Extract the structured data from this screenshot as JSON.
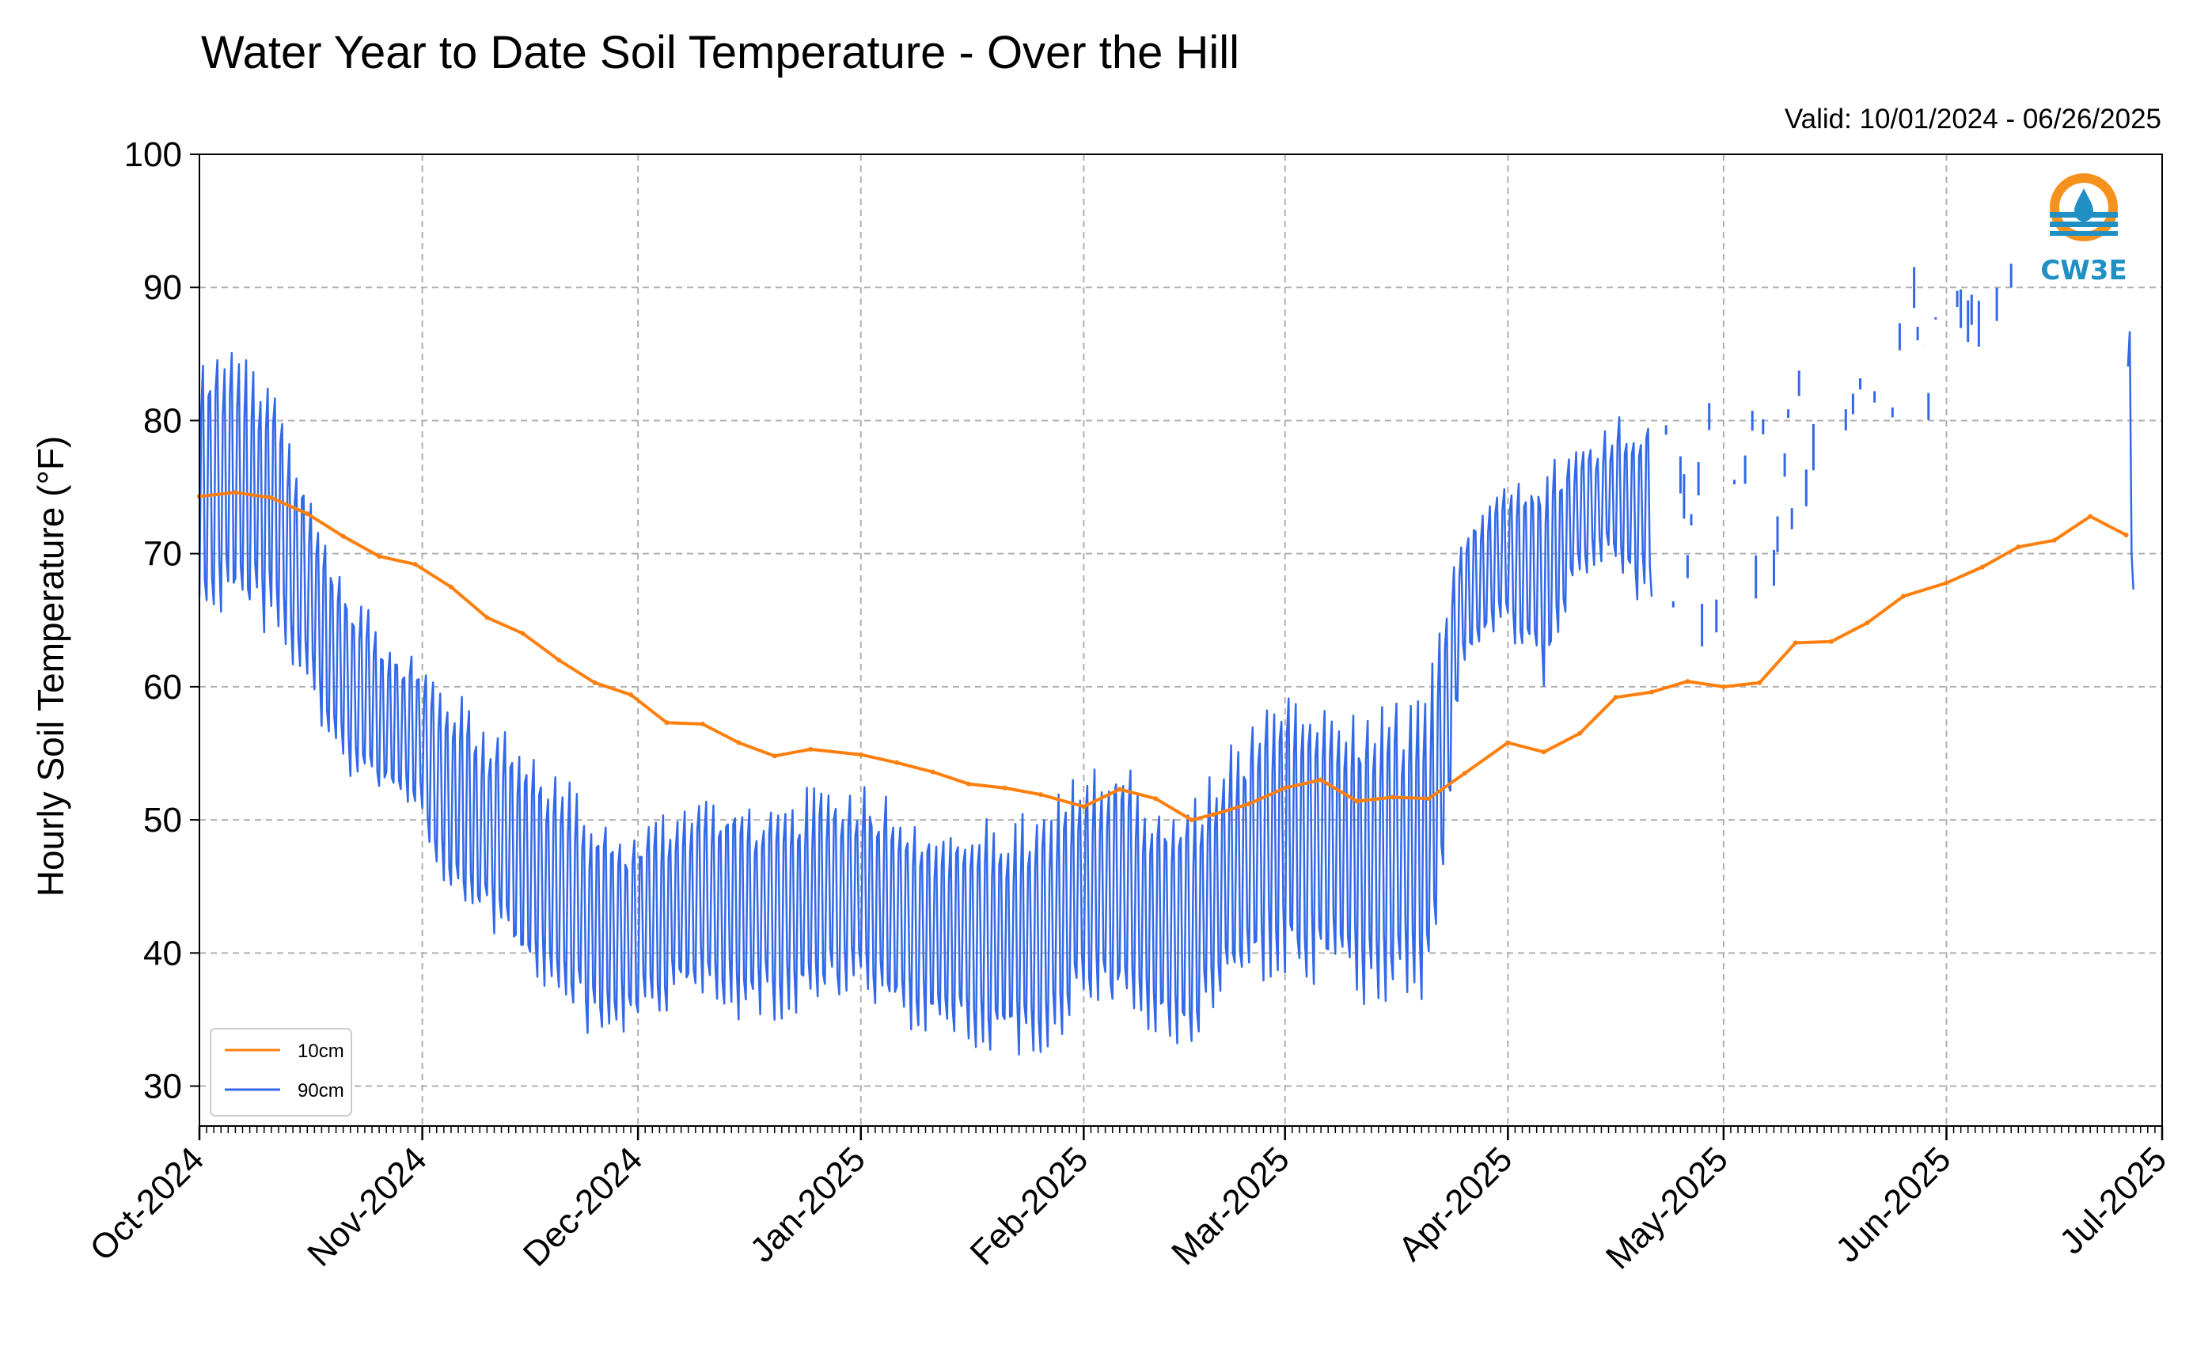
{
  "chart_data": {
    "type": "line",
    "title": "Water Year to Date Soil Temperature - Over the Hill",
    "subtitle": "Valid: 10/01/2024 - 06/26/2025",
    "ylabel": "Hourly Soil Temperature (°F)",
    "xlabel": "",
    "ylim": [
      27,
      100
    ],
    "xlim": [
      "2024-10-01",
      "2025-07-01"
    ],
    "yticks": [
      "30",
      "40",
      "50",
      "60",
      "70",
      "80",
      "90",
      "100"
    ],
    "xticks": [
      "Oct-2024",
      "Nov-2024",
      "Dec-2024",
      "Jan-2025",
      "Feb-2025",
      "Mar-2025",
      "Apr-2025",
      "May-2025",
      "Jun-2025",
      "Jul-2025"
    ],
    "grid": true,
    "legend_position": "bottom-left",
    "logo_text": "CW3E",
    "series": [
      {
        "name": "10cm",
        "color": "#ff7f0e",
        "dates": [
          "2024-10-01",
          "2024-10-06",
          "2024-10-11",
          "2024-10-16",
          "2024-10-21",
          "2024-10-26",
          "2024-10-31",
          "2024-11-05",
          "2024-11-10",
          "2024-11-15",
          "2024-11-20",
          "2024-11-25",
          "2024-11-30",
          "2024-12-05",
          "2024-12-10",
          "2024-12-15",
          "2024-12-20",
          "2024-12-25",
          "2025-01-01",
          "2025-01-06",
          "2025-01-11",
          "2025-01-16",
          "2025-01-21",
          "2025-01-26",
          "2025-02-01",
          "2025-02-06",
          "2025-02-11",
          "2025-02-16",
          "2025-02-19",
          "2025-02-24",
          "2025-03-01",
          "2025-03-06",
          "2025-03-11",
          "2025-03-16",
          "2025-03-21",
          "2025-03-26",
          "2025-04-01",
          "2025-04-06",
          "2025-04-11",
          "2025-04-16",
          "2025-04-21",
          "2025-04-26",
          "2025-05-01",
          "2025-05-06",
          "2025-05-11",
          "2025-05-16",
          "2025-05-21",
          "2025-05-26",
          "2025-06-01",
          "2025-06-06",
          "2025-06-11",
          "2025-06-16",
          "2025-06-21",
          "2025-06-26"
        ],
        "values": [
          74.3,
          74.6,
          74.2,
          73.0,
          71.3,
          69.8,
          69.2,
          67.5,
          65.2,
          64.0,
          62.0,
          60.3,
          59.4,
          57.3,
          57.2,
          55.8,
          54.8,
          55.3,
          54.9,
          54.3,
          53.6,
          52.7,
          52.4,
          51.9,
          51.0,
          52.3,
          51.6,
          50.0,
          50.4,
          51.2,
          52.4,
          53.0,
          51.4,
          51.7,
          51.6,
          53.5,
          55.8,
          55.1,
          56.5,
          59.2,
          59.6,
          60.4,
          60.0,
          60.3,
          63.3,
          63.4,
          64.8,
          66.8,
          67.8,
          69.0,
          70.5,
          71.0,
          72.8,
          71.4
        ]
      },
      {
        "name": "90cm",
        "color": "#3369e8",
        "dates": [
          "2024-10-01",
          "2024-10-06",
          "2024-10-11",
          "2024-10-16",
          "2024-10-21",
          "2024-10-26",
          "2024-10-31",
          "2024-11-05",
          "2024-11-10",
          "2024-11-15",
          "2024-11-20",
          "2024-11-25",
          "2024-11-30",
          "2024-12-05",
          "2024-12-10",
          "2024-12-15",
          "2024-12-20",
          "2024-12-25",
          "2025-01-01",
          "2025-01-06",
          "2025-01-11",
          "2025-01-16",
          "2025-01-21",
          "2025-01-26",
          "2025-02-01",
          "2025-02-06",
          "2025-02-11",
          "2025-02-16",
          "2025-02-21",
          "2025-02-26",
          "2025-03-01",
          "2025-03-06",
          "2025-03-11",
          "2025-03-16",
          "2025-03-21",
          "2025-03-26",
          "2025-04-01",
          "2025-04-06",
          "2025-04-11",
          "2025-04-16",
          "2025-04-21",
          "2025-04-26",
          "2025-05-01",
          "2025-05-06",
          "2025-05-11",
          "2025-05-16",
          "2025-05-21",
          "2025-05-26",
          "2025-06-01",
          "2025-06-06",
          "2025-06-11",
          "2025-06-16",
          "2025-06-21",
          "2025-06-26"
        ],
        "mean": [
          75.5,
          75.0,
          73.5,
          67.0,
          61.0,
          58.0,
          56.5,
          51.5,
          49.5,
          47.0,
          45.0,
          42.0,
          41.5,
          43.0,
          44.5,
          43.5,
          43.0,
          44.0,
          44.5,
          43.0,
          42.0,
          41.5,
          41.5,
          41.0,
          44.5,
          45.0,
          42.5,
          42.0,
          46.0,
          48.0,
          49.5,
          48.0,
          47.0,
          47.5,
          48.5,
          67.0,
          70.0,
          68.0,
          73.0,
          74.5,
          73.0,
          71.5,
          72.0,
          75.0,
          79.0,
          80.0,
          82.0,
          85.0,
          87.0,
          88.5,
          89.0,
          null,
          null,
          77.0
        ],
        "amplitude": [
          10.0,
          10.5,
          9.5,
          8.5,
          7.5,
          6.5,
          6.0,
          8.5,
          8.0,
          9.0,
          9.0,
          8.5,
          7.5,
          8.0,
          8.0,
          8.5,
          8.0,
          8.5,
          8.5,
          9.0,
          8.0,
          8.5,
          9.0,
          9.5,
          9.5,
          10.0,
          9.0,
          9.5,
          9.5,
          10.0,
          11.0,
          10.5,
          11.0,
          11.5,
          12.0,
          6.0,
          6.0,
          9.0,
          5.0,
          6.0,
          8.0,
          8.0,
          9.0,
          7.0,
          6.0,
          7.0,
          5.0,
          5.0,
          4.0,
          3.0,
          4.0,
          null,
          null,
          12.0
        ],
        "observed_min": 30.4,
        "observed_max": 94.2
      }
    ]
  }
}
